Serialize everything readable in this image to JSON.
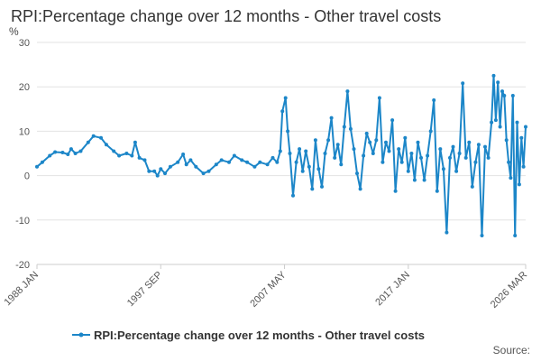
{
  "chart_data": {
    "type": "line",
    "title": "RPI:Percentage change over 12 months - Other travel costs",
    "ylabel": "%",
    "xlabel": "",
    "ylim": [
      -20,
      30
    ],
    "yticks": [
      -20,
      -10,
      0,
      10,
      20,
      30
    ],
    "xlim": [
      "1988-01",
      "2026-03"
    ],
    "xticks": [
      "1988 JAN",
      "1997 SEP",
      "2007 MAY",
      "2017 JAN",
      "2026 MAR"
    ],
    "grid": true,
    "legend_position": "bottom",
    "color": "#1c86c8",
    "series": [
      {
        "name": "RPI:Percentage change over 12 months - Other travel costs",
        "points": [
          [
            "1988-01",
            2.0
          ],
          [
            "1988-06",
            3.0
          ],
          [
            "1989-01",
            4.5
          ],
          [
            "1989-06",
            5.3
          ],
          [
            "1990-01",
            5.2
          ],
          [
            "1990-06",
            4.8
          ],
          [
            "1990-09",
            6.0
          ],
          [
            "1991-01",
            5.0
          ],
          [
            "1991-06",
            5.5
          ],
          [
            "1992-01",
            7.5
          ],
          [
            "1992-06",
            8.9
          ],
          [
            "1993-01",
            8.5
          ],
          [
            "1993-06",
            7.0
          ],
          [
            "1994-01",
            5.5
          ],
          [
            "1994-06",
            4.5
          ],
          [
            "1995-01",
            5.0
          ],
          [
            "1995-06",
            4.5
          ],
          [
            "1995-09",
            7.5
          ],
          [
            "1996-01",
            4.0
          ],
          [
            "1996-06",
            3.5
          ],
          [
            "1996-10",
            1.0
          ],
          [
            "1997-03",
            1.0
          ],
          [
            "1997-06",
            0.0
          ],
          [
            "1997-09",
            1.5
          ],
          [
            "1998-01",
            0.5
          ],
          [
            "1998-06",
            2.0
          ],
          [
            "1999-01",
            3.0
          ],
          [
            "1999-06",
            4.8
          ],
          [
            "1999-09",
            2.5
          ],
          [
            "2000-01",
            3.5
          ],
          [
            "2000-06",
            2.0
          ],
          [
            "2001-01",
            0.5
          ],
          [
            "2001-06",
            1.0
          ],
          [
            "2002-01",
            2.5
          ],
          [
            "2002-06",
            3.5
          ],
          [
            "2003-01",
            3.0
          ],
          [
            "2003-06",
            4.5
          ],
          [
            "2004-01",
            3.5
          ],
          [
            "2004-06",
            3.0
          ],
          [
            "2005-01",
            2.0
          ],
          [
            "2005-06",
            3.0
          ],
          [
            "2006-01",
            2.5
          ],
          [
            "2006-06",
            4.0
          ],
          [
            "2006-10",
            3.0
          ],
          [
            "2007-01",
            5.5
          ],
          [
            "2007-03",
            14.5
          ],
          [
            "2007-06",
            17.5
          ],
          [
            "2007-08",
            10.0
          ],
          [
            "2007-10",
            5.0
          ],
          [
            "2008-01",
            -4.5
          ],
          [
            "2008-04",
            3.0
          ],
          [
            "2008-07",
            6.0
          ],
          [
            "2008-10",
            1.0
          ],
          [
            "2009-01",
            5.5
          ],
          [
            "2009-04",
            2.0
          ],
          [
            "2009-07",
            -3.0
          ],
          [
            "2009-10",
            8.0
          ],
          [
            "2010-01",
            1.5
          ],
          [
            "2010-04",
            -2.5
          ],
          [
            "2010-07",
            5.0
          ],
          [
            "2010-10",
            8.0
          ],
          [
            "2011-01",
            13.0
          ],
          [
            "2011-04",
            4.0
          ],
          [
            "2011-07",
            7.0
          ],
          [
            "2011-10",
            2.5
          ],
          [
            "2012-01",
            11.0
          ],
          [
            "2012-04",
            19.0
          ],
          [
            "2012-07",
            10.5
          ],
          [
            "2012-10",
            6.0
          ],
          [
            "2013-01",
            0.5
          ],
          [
            "2013-04",
            -3.0
          ],
          [
            "2013-07",
            4.5
          ],
          [
            "2013-10",
            9.5
          ],
          [
            "2014-01",
            7.5
          ],
          [
            "2014-04",
            5.0
          ],
          [
            "2014-07",
            8.0
          ],
          [
            "2014-10",
            17.5
          ],
          [
            "2015-01",
            3.0
          ],
          [
            "2015-04",
            7.5
          ],
          [
            "2015-07",
            5.5
          ],
          [
            "2015-10",
            12.5
          ],
          [
            "2016-01",
            -3.5
          ],
          [
            "2016-04",
            6.0
          ],
          [
            "2016-07",
            3.0
          ],
          [
            "2016-10",
            8.5
          ],
          [
            "2017-01",
            1.0
          ],
          [
            "2017-04",
            5.0
          ],
          [
            "2017-07",
            -1.0
          ],
          [
            "2017-10",
            7.5
          ],
          [
            "2018-01",
            4.0
          ],
          [
            "2018-04",
            -1.0
          ],
          [
            "2018-07",
            4.5
          ],
          [
            "2018-10",
            10.0
          ],
          [
            "2019-01",
            17.0
          ],
          [
            "2019-04",
            -3.5
          ],
          [
            "2019-07",
            6.0
          ],
          [
            "2019-10",
            1.5
          ],
          [
            "2020-01",
            -12.8
          ],
          [
            "2020-04",
            4.0
          ],
          [
            "2020-07",
            6.5
          ],
          [
            "2020-10",
            1.0
          ],
          [
            "2021-01",
            5.0
          ],
          [
            "2021-04",
            20.8
          ],
          [
            "2021-07",
            4.0
          ],
          [
            "2021-10",
            7.5
          ],
          [
            "2022-01",
            -2.5
          ],
          [
            "2022-04",
            3.0
          ],
          [
            "2022-07",
            7.0
          ],
          [
            "2022-10",
            -13.5
          ],
          [
            "2023-01",
            6.5
          ],
          [
            "2023-04",
            4.0
          ],
          [
            "2023-07",
            12.0
          ],
          [
            "2023-09",
            22.5
          ],
          [
            "2023-11",
            12.5
          ],
          [
            "2024-01",
            21.0
          ],
          [
            "2024-03",
            11.0
          ],
          [
            "2024-05",
            19.0
          ],
          [
            "2024-07",
            18.0
          ],
          [
            "2024-09",
            8.0
          ],
          [
            "2024-11",
            3.0
          ],
          [
            "2025-01",
            -0.5
          ],
          [
            "2025-03",
            18.0
          ],
          [
            "2025-05",
            -13.5
          ],
          [
            "2025-07",
            12.0
          ],
          [
            "2025-09",
            -2.0
          ],
          [
            "2025-11",
            8.5
          ],
          [
            "2026-01",
            2.0
          ],
          [
            "2026-03",
            11.0
          ]
        ]
      }
    ]
  },
  "footer": {
    "source_label": "Source:"
  }
}
